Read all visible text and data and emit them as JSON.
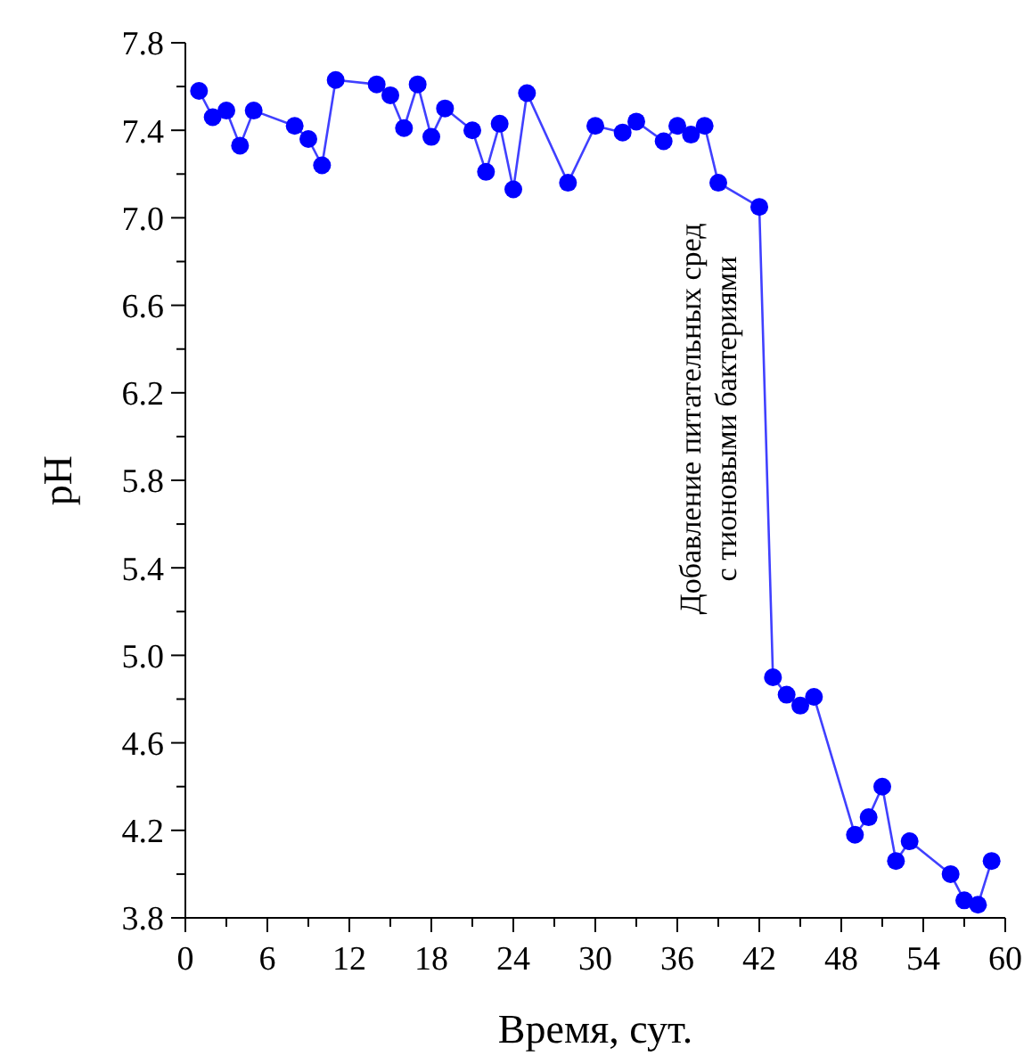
{
  "chart_data": {
    "type": "line",
    "xlabel": "Время, сут.",
    "ylabel": "pH",
    "x": [
      1,
      2,
      3,
      4,
      5,
      8,
      9,
      10,
      11,
      14,
      15,
      16,
      17,
      18,
      19,
      21,
      22,
      23,
      24,
      25,
      28,
      30,
      32,
      33,
      35,
      36,
      37,
      38,
      39,
      42,
      43,
      44,
      45,
      46,
      49,
      50,
      51,
      52,
      53,
      56,
      57,
      58,
      59
    ],
    "series": [
      {
        "color": "#0000ff",
        "values": [
          7.58,
          7.46,
          7.49,
          7.33,
          7.49,
          7.42,
          7.36,
          7.24,
          7.63,
          7.61,
          7.56,
          7.41,
          7.61,
          7.37,
          7.5,
          7.4,
          7.21,
          7.43,
          7.13,
          7.57,
          7.16,
          7.42,
          7.39,
          7.44,
          7.35,
          7.42,
          7.38,
          7.42,
          7.16,
          7.05,
          4.9,
          4.82,
          4.77,
          4.81,
          4.18,
          4.26,
          4.4,
          4.06,
          4.15,
          4.0,
          3.88,
          3.86,
          4.06
        ]
      }
    ],
    "xlim": [
      0,
      60
    ],
    "ylim": [
      3.8,
      7.8
    ],
    "xticks": [
      0,
      {
        "value": 3,
        "label": null
      },
      6,
      {
        "value": 9,
        "label": null
      },
      12,
      {
        "value": 15,
        "label": null
      },
      18,
      {
        "value": 21,
        "label": null
      },
      24,
      {
        "value": 27,
        "label": null
      },
      30,
      {
        "value": 33,
        "label": null
      },
      36,
      {
        "value": 39,
        "label": null
      },
      42,
      {
        "value": 45,
        "label": null
      },
      48,
      {
        "value": 51,
        "label": null
      },
      54,
      {
        "value": 57,
        "label": null
      },
      60
    ],
    "yticks": [
      {
        "value": 3.8,
        "label": "3.8"
      },
      {
        "value": 4.0,
        "label": null
      },
      {
        "value": 4.2,
        "label": "4.2"
      },
      {
        "value": 4.4,
        "label": null
      },
      {
        "value": 4.6,
        "label": "4.6"
      },
      {
        "value": 4.8,
        "label": null
      },
      {
        "value": 5.0,
        "label": "5.0"
      },
      {
        "value": 5.2,
        "label": null
      },
      {
        "value": 5.4,
        "label": "5.4"
      },
      {
        "value": 5.6,
        "label": null
      },
      {
        "value": 5.8,
        "label": "5.8"
      },
      {
        "value": 6.0,
        "label": null
      },
      {
        "value": 6.2,
        "label": "6.2"
      },
      {
        "value": 6.4,
        "label": null
      },
      {
        "value": 6.6,
        "label": "6.6"
      },
      {
        "value": 6.8,
        "label": null
      },
      {
        "value": 7.0,
        "label": "7.0"
      },
      {
        "value": 7.2,
        "label": null
      },
      {
        "value": 7.4,
        "label": "7.4"
      },
      {
        "value": 7.6,
        "label": null
      },
      {
        "value": 7.8,
        "label": "7.8"
      }
    ],
    "marker": "circle",
    "line_style": "solid",
    "grid": false,
    "annotations": [
      "Добавление питательных сред\nс тионовыми бактериями"
    ]
  }
}
